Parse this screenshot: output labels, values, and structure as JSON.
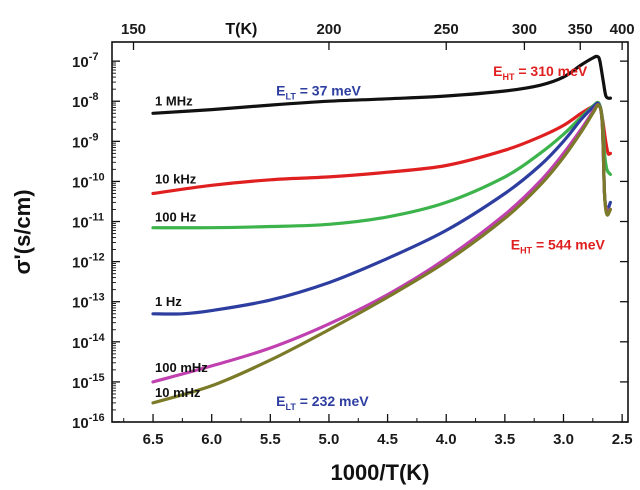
{
  "chart_data": {
    "type": "line",
    "title": "",
    "xlabel": "1000/T(K)",
    "ylabel": "σ'(s/cm)",
    "x_reversed": true,
    "y_scale": "log",
    "xlim": [
      6.85,
      2.45
    ],
    "ylim": [
      1e-16,
      3e-07
    ],
    "x_ticks": [
      "6.5",
      "6.0",
      "5.5",
      "5.0",
      "4.5",
      "4.0",
      "3.5",
      "3.0",
      "2.5"
    ],
    "y_ticks": [
      {
        "base": "10",
        "exp": "-7"
      },
      {
        "base": "10",
        "exp": "-8"
      },
      {
        "base": "10",
        "exp": "-9"
      },
      {
        "base": "10",
        "exp": "-10"
      },
      {
        "base": "10",
        "exp": "-11"
      },
      {
        "base": "10",
        "exp": "-12"
      },
      {
        "base": "10",
        "exp": "-13"
      },
      {
        "base": "10",
        "exp": "-14"
      },
      {
        "base": "10",
        "exp": "-15"
      },
      {
        "base": "10",
        "exp": "-16"
      }
    ],
    "top_axis": {
      "label": "T(K)",
      "ticks": [
        "150",
        "200",
        "250",
        "300",
        "350",
        "400"
      ]
    },
    "series": [
      {
        "name": "1 MHz",
        "color": "#111111",
        "x": [
          6.5,
          6.0,
          5.5,
          5.0,
          4.5,
          4.0,
          3.5,
          3.2,
          3.0,
          2.85,
          2.75,
          2.71,
          2.69,
          2.66,
          2.64,
          2.62,
          2.6
        ],
        "y": [
          5e-09,
          6.2e-09,
          8e-09,
          1e-08,
          1.15e-08,
          1.35e-08,
          1.8e-08,
          2.5e-08,
          4e-08,
          8e-08,
          1.2e-07,
          1.3e-07,
          1e-07,
          3e-08,
          1.4e-08,
          1.2e-08,
          1.2e-08
        ]
      },
      {
        "name": "10 kHz",
        "color": "#e02020",
        "x": [
          6.5,
          6.0,
          5.5,
          5.0,
          4.5,
          4.0,
          3.5,
          3.2,
          3.0,
          2.85,
          2.75,
          2.7,
          2.67,
          2.64,
          2.62,
          2.6
        ],
        "y": [
          5e-11,
          8e-11,
          1.1e-10,
          1.3e-10,
          1.7e-10,
          2.5e-10,
          6e-10,
          1.3e-09,
          2.5e-09,
          5e-09,
          7.5e-09,
          9e-09,
          4e-09,
          1e-09,
          5e-10,
          5e-10
        ]
      },
      {
        "name": "100 Hz",
        "color": "#3cb44b",
        "x": [
          6.5,
          6.0,
          5.5,
          5.0,
          4.5,
          4.0,
          3.5,
          3.2,
          3.0,
          2.85,
          2.75,
          2.7,
          2.67,
          2.65,
          2.63,
          2.6
        ],
        "y": [
          7e-12,
          7e-12,
          7.5e-12,
          8.5e-12,
          1.3e-11,
          3e-11,
          1.3e-10,
          5e-10,
          1.5e-09,
          4e-09,
          7.5e-09,
          9e-09,
          4e-09,
          5e-10,
          2e-10,
          1.5e-10
        ]
      },
      {
        "name": "1 Hz",
        "color": "#2d3ea0",
        "x": [
          6.5,
          6.25,
          6.0,
          5.5,
          5.0,
          4.5,
          4.0,
          3.5,
          3.2,
          3.0,
          2.85,
          2.75,
          2.7,
          2.67,
          2.65,
          2.63,
          2.6
        ],
        "y": [
          5e-14,
          5e-14,
          6e-14,
          1.1e-13,
          3e-13,
          1.2e-12,
          6e-12,
          5e-11,
          2.5e-10,
          1e-09,
          3.5e-09,
          7e-09,
          8.5e-09,
          3e-09,
          5e-11,
          2e-11,
          3e-11
        ]
      },
      {
        "name": "100 mHz",
        "color": "#c040b0",
        "x": [
          6.5,
          6.0,
          5.5,
          5.0,
          4.5,
          4.0,
          3.5,
          3.2,
          3.0,
          2.85,
          2.75,
          2.7,
          2.67,
          2.65,
          2.63,
          2.6
        ],
        "y": [
          1e-15,
          2.5e-15,
          7e-15,
          2.8e-14,
          1.5e-13,
          1.2e-12,
          1.5e-11,
          1e-10,
          5e-10,
          2e-09,
          5.5e-09,
          8e-09,
          3e-09,
          5e-11,
          2e-11,
          2e-11
        ]
      },
      {
        "name": "10 mHz",
        "color": "#7a7a28",
        "x": [
          6.5,
          6.0,
          5.5,
          5.0,
          4.5,
          4.0,
          3.5,
          3.2,
          3.0,
          2.85,
          2.75,
          2.7,
          2.67,
          2.65,
          2.63,
          2.6
        ],
        "y": [
          3e-16,
          8e-16,
          3.5e-15,
          2e-14,
          1.3e-13,
          1e-12,
          1.2e-11,
          8e-11,
          4e-10,
          1.7e-09,
          5e-09,
          8e-09,
          3e-09,
          5e-11,
          1.5e-11,
          2e-11
        ]
      }
    ],
    "annotations": [
      {
        "main": "E",
        "sub": "LT",
        "rest": " = 37 meV",
        "color": "#2d3ea0",
        "x": 5.45,
        "y": 1.4e-08
      },
      {
        "main": "E",
        "sub": "HT",
        "rest": " = 310 meV",
        "color": "#e02020",
        "x": 3.6,
        "y": 4.2e-08
      },
      {
        "main": "E",
        "sub": "HT",
        "rest": " = 544 meV",
        "color": "#e02020",
        "x": 3.45,
        "y": 2e-12
      },
      {
        "main": "E",
        "sub": "LT",
        "rest": " = 232 meV",
        "color": "#2d3ea0",
        "x": 5.45,
        "y": 2.5e-16
      }
    ]
  }
}
